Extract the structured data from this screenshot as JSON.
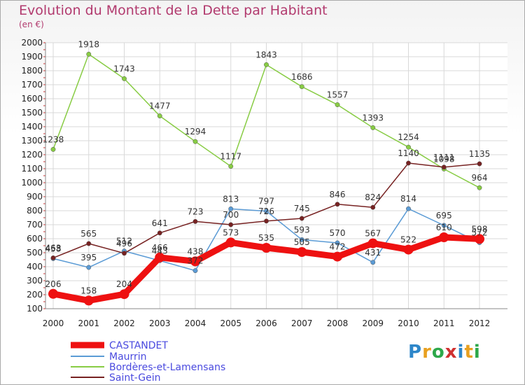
{
  "colors": {
    "title": "#b23a6e",
    "grid": "#d9d9d9",
    "axis": "#888888"
  },
  "logo": {
    "text": "Proxiti",
    "colors": [
      "#2d86c9",
      "#e8a020",
      "#2da84a",
      "#d03030",
      "#2d86c9",
      "#e8a020",
      "#2da84a"
    ]
  },
  "chart_data": {
    "type": "line",
    "title": "Evolution du Montant de la Dette par Habitant",
    "subtitle": "(en €)",
    "xlabel": "",
    "ylabel": "",
    "ylim": [
      100,
      2000
    ],
    "y_ticks": [
      100,
      200,
      300,
      400,
      500,
      600,
      700,
      800,
      900,
      1000,
      1100,
      1200,
      1300,
      1400,
      1500,
      1600,
      1700,
      1800,
      1900,
      2000
    ],
    "grid": true,
    "legend_position": "bottom-left",
    "categories": [
      "2000",
      "2001",
      "2002",
      "2003",
      "2004",
      "2005",
      "2006",
      "2007",
      "2008",
      "2009",
      "2010",
      "2011",
      "2012"
    ],
    "series": [
      {
        "name": "CASTANDET",
        "color": "#ee1111",
        "values": [
          206,
          158,
          204,
          466,
          438,
          573,
          535,
          505,
          472,
          567,
          522,
          610,
          598
        ]
      },
      {
        "name": "Maurrin",
        "color": "#5b9bd5",
        "values": [
          458,
          395,
          512,
          443,
          372,
          813,
          797,
          593,
          570,
          431,
          814,
          695,
          572
        ]
      },
      {
        "name": "Bordères-et-Lamensans",
        "color": "#88cc44",
        "values": [
          1238,
          1918,
          1743,
          1477,
          1294,
          1117,
          1843,
          1686,
          1557,
          1393,
          1254,
          1098,
          964
        ]
      },
      {
        "name": "Saint-Gein",
        "color": "#772222",
        "values": [
          463,
          565,
          496,
          641,
          723,
          700,
          726,
          745,
          846,
          824,
          1140,
          1111,
          1135
        ]
      }
    ]
  }
}
